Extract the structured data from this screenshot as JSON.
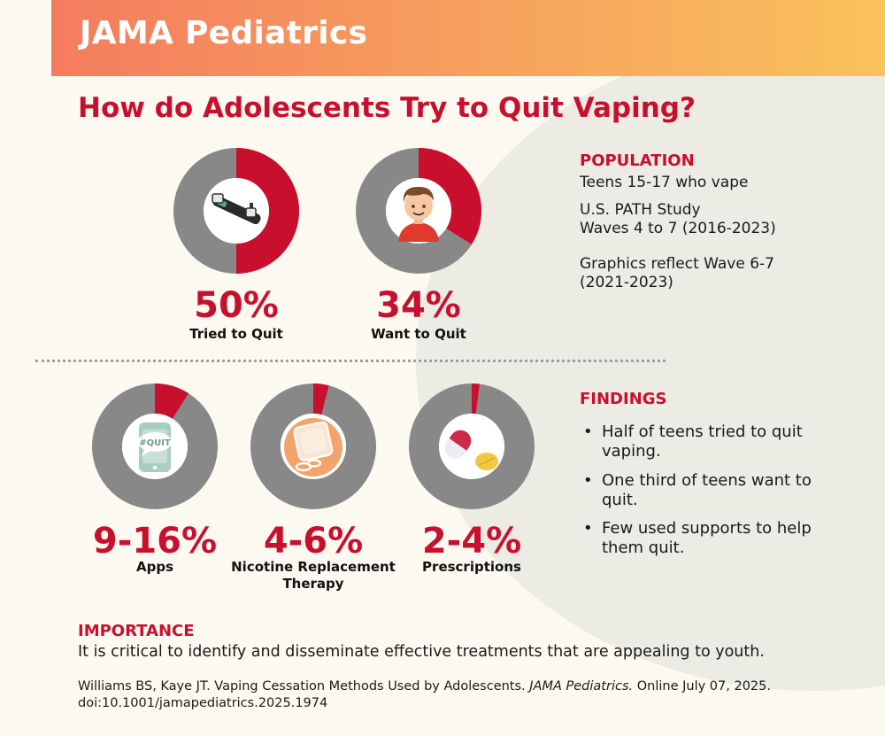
{
  "header": {
    "journal": "JAMA Pediatrics"
  },
  "title": "How do Adolescents Try to Quit Vaping?",
  "colors": {
    "accent": "#c8102e",
    "ring": "#888888",
    "header_start": "#f47c5e",
    "header_end": "#f9c25c",
    "background": "#fcfaf0"
  },
  "chart_data": [
    {
      "type": "pie",
      "variant": "donut",
      "value": 50,
      "value_text": "50%",
      "label": "Tried to Quit",
      "icon": "vape-device-icon"
    },
    {
      "type": "pie",
      "variant": "donut",
      "value": 34,
      "value_text": "34%",
      "label": "Want to Quit",
      "icon": "teen-boy-icon"
    },
    {
      "type": "pie",
      "variant": "donut",
      "value": 9,
      "value_text": "9-16%",
      "label": "Apps",
      "icon": "quit-phone-app-icon"
    },
    {
      "type": "pie",
      "variant": "donut",
      "value": 4,
      "value_text": "4-6%",
      "label": "Nicotine Replacement Therapy",
      "icon": "nicotine-patch-icon"
    },
    {
      "type": "pie",
      "variant": "donut",
      "value": 2,
      "value_text": "2-4%",
      "label": "Prescriptions",
      "icon": "pills-icon"
    }
  ],
  "population": {
    "heading": "POPULATION",
    "line1": "Teens 15-17 who vape",
    "line2": "U.S. PATH Study",
    "line3": "Waves 4 to 7 (2016-2023)",
    "line4": "Graphics reflect Wave 6-7",
    "line5": "(2021-2023)"
  },
  "findings": {
    "heading": "FINDINGS",
    "items": [
      {
        "line1": "Half of teens tried to quit",
        "line2": "vaping."
      },
      {
        "line1": "One third of teens want to",
        "line2": "quit."
      },
      {
        "line1": "Few used supports to help",
        "line2": "them quit."
      }
    ]
  },
  "importance": {
    "heading": "IMPORTANCE",
    "text": "It is critical to identify and disseminate effective treatments that are appealing to youth."
  },
  "citation": {
    "authors": "Williams BS, Kaye JT. Vaping Cessation Methods Used by Adolescents. ",
    "journal": "JAMA Pediatrics.",
    "rest": " Online July 07, 2025.",
    "doi": "doi:10.1001/jamapediatrics.2025.1974"
  }
}
